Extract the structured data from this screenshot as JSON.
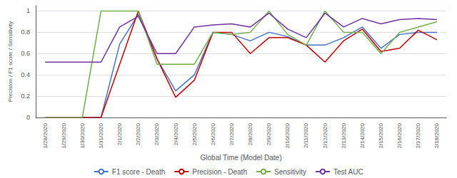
{
  "chart_data": {
    "type": "line",
    "xlabel": "Global Time (Model Date)",
    "ylabel": "Precision / F1 score / Sensitivity",
    "categories": [
      "1/28/2020",
      "1/29/2020",
      "1/30/2020",
      "1/31/2020",
      "2/1/2020",
      "2/2/2020",
      "2/3/2020",
      "2/4/2020",
      "2/5/2020",
      "2/6/2020",
      "2/7/2020",
      "2/8/2020",
      "2/9/2020",
      "2/10/2020",
      "2/11/2020",
      "2/12/2020",
      "2/13/2020",
      "2/14/2020",
      "2/15/2020",
      "2/16/2020",
      "2/17/2020",
      "2/18/2020"
    ],
    "series": [
      {
        "name": "F1 score - Death",
        "color": "#4472C4",
        "values": [
          0.0,
          0.0,
          0.0,
          0.0,
          0.69,
          0.97,
          0.55,
          0.25,
          0.4,
          0.8,
          0.78,
          0.72,
          0.8,
          0.76,
          0.68,
          0.68,
          0.75,
          0.85,
          0.65,
          0.78,
          0.8,
          0.8
        ]
      },
      {
        "name": "Precision - Death",
        "color": "#C00000",
        "values": [
          0.0,
          0.0,
          0.0,
          0.0,
          0.5,
          1.0,
          0.55,
          0.19,
          0.35,
          0.8,
          0.8,
          0.6,
          0.75,
          0.75,
          0.68,
          0.52,
          0.72,
          0.83,
          0.62,
          0.65,
          0.82,
          0.73
        ]
      },
      {
        "name": "Sensitivity",
        "color": "#70AD47",
        "values": [
          0.0,
          0.0,
          0.0,
          1.0,
          1.0,
          1.0,
          0.5,
          0.5,
          0.5,
          0.8,
          0.78,
          0.8,
          1.0,
          0.78,
          0.68,
          1.0,
          0.8,
          0.8,
          0.6,
          0.8,
          0.85,
          0.9
        ]
      },
      {
        "name": "Test AUC",
        "color": "#7030A0",
        "values": [
          0.52,
          0.52,
          0.52,
          0.52,
          0.85,
          0.95,
          0.6,
          0.6,
          0.85,
          0.87,
          0.88,
          0.85,
          0.98,
          0.83,
          0.75,
          0.98,
          0.85,
          0.93,
          0.88,
          0.92,
          0.93,
          0.92
        ]
      }
    ],
    "ylim": [
      0,
      1.05
    ],
    "yticks": [
      0,
      0.2,
      0.4,
      0.6,
      0.8,
      1
    ],
    "grid": true,
    "legend": "bottom"
  }
}
